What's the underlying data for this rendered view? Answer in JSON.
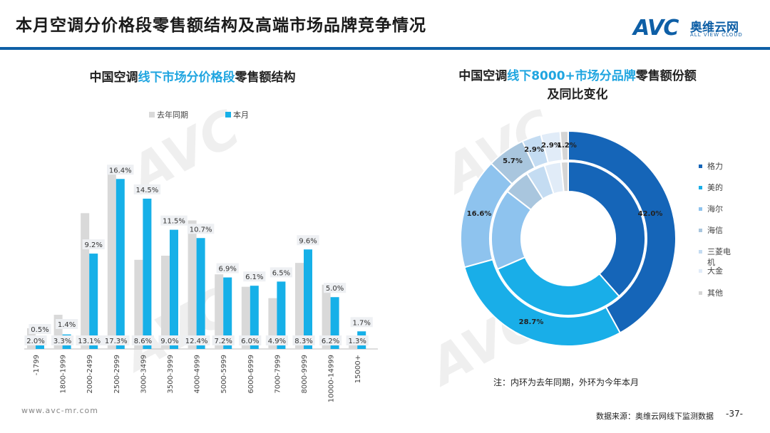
{
  "header": {
    "title": "本月空调分价格段零售额结构及高端市场品牌竞争情况",
    "logo_main": "AVC",
    "logo_cn": "奥维云网",
    "logo_en": "ALL VIEW CLOUD"
  },
  "colors": {
    "accent": "#0e5fa6",
    "current_bar": "#16b0e8",
    "last_year_bar": "#d9d9d9",
    "highlight_text": "#1fa5e0"
  },
  "left_chart": {
    "title_pre": "中国空调",
    "title_hl": "线下市场分价格段",
    "title_post": "零售额结构"
  },
  "right_chart": {
    "title_line1_pre": "中国空调",
    "title_line1_hl": "线下8000+市场分品牌",
    "title_line1_post": "零售额份额",
    "title_line2": "及同比变化"
  },
  "chart_data": [
    {
      "type": "bar",
      "title": "中国空调线下市场分价格段零售额结构",
      "categories": [
        "-1799",
        "1800-1999",
        "2000-2499",
        "2500-2999",
        "3000-3499",
        "3500-3999",
        "4000-4999",
        "5000-5999",
        "6000-6999",
        "7000-7999",
        "8000-9999",
        "10000-14999",
        "15000+"
      ],
      "series": [
        {
          "name": "去年同期",
          "values": [
            2.0,
            3.3,
            13.1,
            17.3,
            8.6,
            9.0,
            12.4,
            7.2,
            6.0,
            4.9,
            8.3,
            6.2,
            1.3
          ],
          "labels": [
            "2.0%",
            "3.3%",
            "13.1%",
            "17.3%",
            "8.6%",
            "9.0%",
            "12.4%",
            "7.2%",
            "6.0%",
            "4.9%",
            "8.3%",
            "6.2%",
            "1.3%"
          ]
        },
        {
          "name": "本月",
          "values": [
            0.5,
            1.4,
            9.2,
            16.4,
            14.5,
            11.5,
            10.7,
            6.9,
            6.1,
            6.5,
            9.6,
            5.0,
            1.7
          ],
          "labels": [
            "0.5%",
            "1.4%",
            "9.2%",
            "16.4%",
            "14.5%",
            "11.5%",
            "10.7%",
            "6.9%",
            "6.1%",
            "6.5%",
            "9.6%",
            "5.0%",
            "1.7%"
          ]
        }
      ],
      "legend": [
        "去年同期",
        "本月"
      ],
      "legend_position": "top",
      "ylim": [
        0,
        18
      ],
      "grid": false
    },
    {
      "type": "pie",
      "subtype": "double-donut",
      "title": "中国空调线下8000+市场分品牌零售额份额及同比变化",
      "categories": [
        "格力",
        "美的",
        "海尔",
        "海信",
        "三菱电机",
        "大金",
        "其他"
      ],
      "colors": [
        "#1565b8",
        "#19aee8",
        "#8ec3ee",
        "#a9c6de",
        "#c4dcf2",
        "#e1ecf8",
        "#d5d5d5"
      ],
      "series": [
        {
          "name": "去年同期(内环)",
          "values": [
            38.5,
            30.0,
            17.0,
            5.5,
            4.0,
            3.5,
            1.5
          ]
        },
        {
          "name": "本月(外环)",
          "values": [
            42.0,
            28.7,
            16.6,
            5.7,
            2.9,
            2.9,
            1.2
          ],
          "labels": [
            "42.0%",
            "28.7%",
            "16.6%",
            "5.7%",
            "2.9%",
            "2.9%",
            "1.2%"
          ]
        }
      ],
      "legend": [
        "格力",
        "美的",
        "海尔",
        "海信",
        "三菱电机",
        "大金",
        "其他"
      ],
      "legend_position": "right"
    }
  ],
  "note": "注：内环为去年同期，外环为今年本月",
  "footer": {
    "url": "www.avc-mr.com",
    "source": "数据来源：奥维云网线下监测数据",
    "page": "-37-"
  }
}
